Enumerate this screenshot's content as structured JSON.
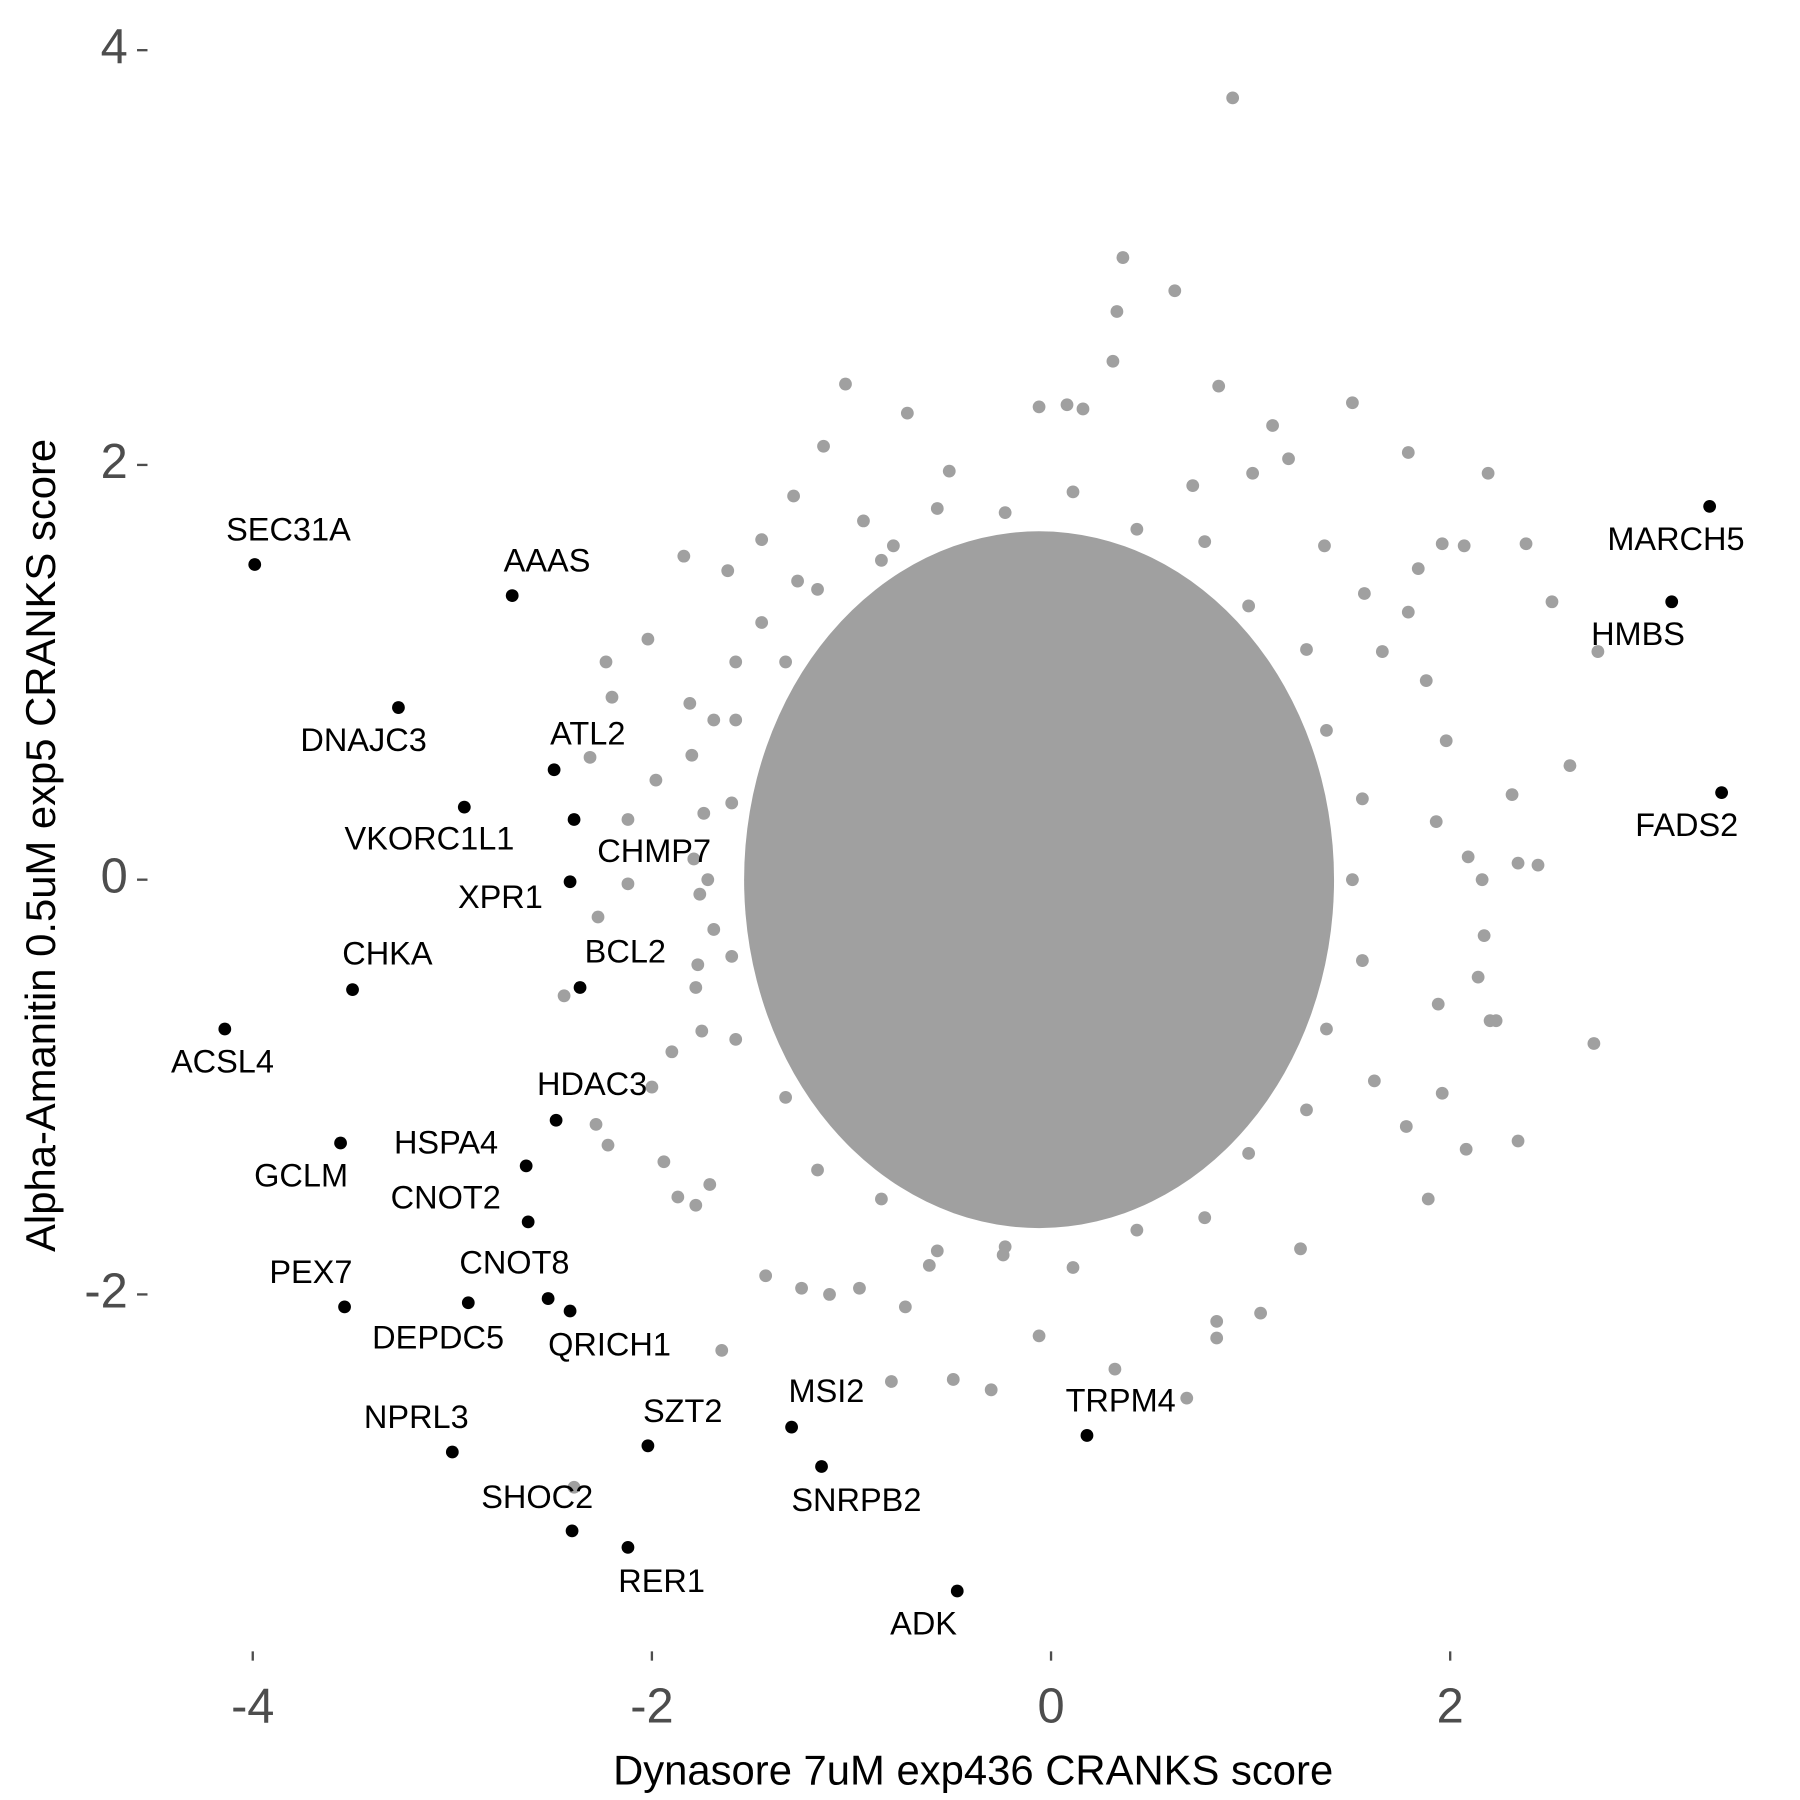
{
  "chart_data": {
    "type": "scatter",
    "xlabel": "Dynasore 7uM exp436 CRANKS score",
    "ylabel": "Alpha-Amanitin 0.5uM exp5 CRANKS score",
    "xlim": [
      -4.51,
      3.52
    ],
    "ylim": [
      -3.71,
      4.13
    ],
    "xticks": [
      -4,
      -2,
      0,
      2
    ],
    "yticks": [
      -2,
      0,
      2,
      4
    ],
    "grid": false,
    "series": [
      {
        "color": "#a0a0a0",
        "x": [
          0.91,
          0.36,
          0.62,
          0.33,
          0.31,
          0.84,
          -1.03,
          1.51,
          -0.72,
          1.79,
          2.19,
          2.38,
          2.74,
          2.51,
          2.6,
          2.31,
          2.44,
          2.34,
          2.16,
          2.72,
          2.34,
          2.08,
          1.89,
          1.96,
          2.2,
          0.68,
          0.32,
          -0.3,
          -0.8,
          -0.49,
          -1.65,
          -1.43,
          -1.25,
          -1.11,
          -2.39,
          -2.23,
          -2.2,
          -2.02,
          -1.84,
          -1.62,
          -2.31,
          -2.12,
          -2.44,
          -2.28,
          -2.22,
          -2.0,
          -1.87,
          -1.9,
          -1.98,
          -2.12,
          -2.27,
          1.11,
          1.19,
          1.01,
          -1.14,
          -1.29,
          -1.45,
          -0.06,
          0.08,
          0.16,
          1.84,
          1.96,
          2.07,
          1.79,
          1.88,
          1.98,
          1.93,
          2.09,
          2.17,
          2.14,
          2.23,
          1.94,
          1.78,
          1.62,
          1.25,
          1.05,
          0.83,
          0.83,
          -0.06,
          -0.24,
          -0.61,
          -0.73,
          -0.96,
          -1.78,
          -1.71,
          -1.94,
          -1.75,
          -1.78,
          -1.77,
          -1.69,
          -1.76,
          -1.79,
          -1.74,
          -1.8,
          -1.69,
          -1.81,
          -1.58,
          -1.45,
          -1.27,
          -0.94,
          -0.79,
          -0.51,
          0.71,
          1.37,
          1.57,
          1.66,
          1.51,
          1.56,
          1.38,
          1.28,
          0.99,
          0.77,
          0.43,
          0.11,
          -0.23,
          -0.57,
          -0.85,
          -1.17,
          -1.33,
          -1.58,
          -1.6,
          -1.72,
          -1.6,
          -1.58,
          -1.33,
          -1.17,
          -0.85,
          -0.57,
          -0.23,
          0.11,
          0.43,
          0.77,
          0.99,
          1.28,
          1.38,
          1.56
        ],
        "y": [
          3.77,
          3.0,
          2.84,
          2.74,
          2.5,
          2.38,
          2.39,
          2.3,
          2.25,
          2.06,
          1.96,
          1.62,
          1.1,
          1.34,
          0.55,
          0.41,
          0.07,
          0.08,
          0.0,
          -0.79,
          -1.26,
          -1.3,
          -1.54,
          -1.03,
          -0.68,
          -2.5,
          -2.36,
          -2.46,
          -2.42,
          -2.41,
          -2.27,
          -1.91,
          -1.97,
          -2.0,
          -2.93,
          1.05,
          0.88,
          1.16,
          1.56,
          1.49,
          0.59,
          0.29,
          -0.56,
          -1.18,
          -1.28,
          -1.0,
          -1.53,
          -0.83,
          0.48,
          -0.02,
          -0.18,
          2.19,
          2.03,
          1.96,
          2.09,
          1.85,
          1.64,
          2.28,
          2.29,
          2.27,
          1.5,
          1.62,
          1.61,
          1.29,
          0.96,
          0.67,
          0.28,
          0.11,
          -0.27,
          -0.47,
          -0.68,
          -0.6,
          -1.19,
          -0.97,
          -1.78,
          -2.09,
          -2.13,
          -2.21,
          -2.2,
          -1.81,
          -1.86,
          -2.06,
          -1.97,
          -1.57,
          -1.47,
          -1.36,
          -0.73,
          -0.52,
          -0.41,
          -0.24,
          -0.07,
          0.1,
          0.32,
          0.6,
          0.77,
          0.85,
          1.05,
          1.24,
          1.44,
          1.73,
          1.61,
          1.97,
          1.9,
          1.61,
          1.38,
          1.1,
          0.0,
          0.39,
          0.72,
          1.11,
          1.32,
          1.63,
          1.69,
          1.87,
          1.77,
          1.79,
          1.54,
          1.4,
          1.05,
          0.77,
          0.37,
          0.0,
          -0.37,
          -0.77,
          -1.05,
          -1.4,
          -1.54,
          -1.79,
          -1.77,
          -1.87,
          -1.69,
          -1.63,
          -1.32,
          -1.11,
          -0.72,
          -0.39
        ]
      },
      {
        "color": "#000000",
        "x": [
          -3.99,
          -2.7,
          -3.27,
          -2.49,
          -2.94,
          -2.39,
          -2.41,
          -3.5,
          -2.36,
          -4.14,
          -2.48,
          -3.56,
          -2.63,
          -2.62,
          -3.54,
          -2.92,
          -2.52,
          -2.41,
          -3.0,
          -2.02,
          -1.3,
          -1.15,
          -2.4,
          -2.12,
          -0.47,
          0.18,
          3.3,
          3.11,
          3.36
        ],
        "y": [
          1.52,
          1.37,
          0.83,
          0.53,
          0.35,
          0.29,
          -0.01,
          -0.53,
          -0.52,
          -0.72,
          -1.16,
          -1.27,
          -1.38,
          -1.65,
          -2.06,
          -2.04,
          -2.02,
          -2.08,
          -2.76,
          -2.73,
          -2.64,
          -2.83,
          -3.14,
          -3.22,
          -3.43,
          -2.68,
          1.8,
          1.34,
          0.42
        ],
        "labels": [
          "SEC31A",
          "AAAS",
          "DNAJC3",
          "ATL2",
          "VKORC1L1",
          "CHMP7",
          "XPR1",
          "CHKA",
          "BCL2",
          "ACSL4",
          "HDAC3",
          "GCLM",
          "HSPA4",
          "CNOT2",
          "PEX7",
          "DEPDC5",
          "CNOT8",
          "QRICH1",
          "NPRL3",
          "SZT2",
          "MSI2",
          "SNRPB2",
          "SHOC2",
          "RER1",
          "ADK",
          "TRPM4",
          "MARCH5",
          "HMBS",
          "FADS2"
        ]
      }
    ]
  }
}
